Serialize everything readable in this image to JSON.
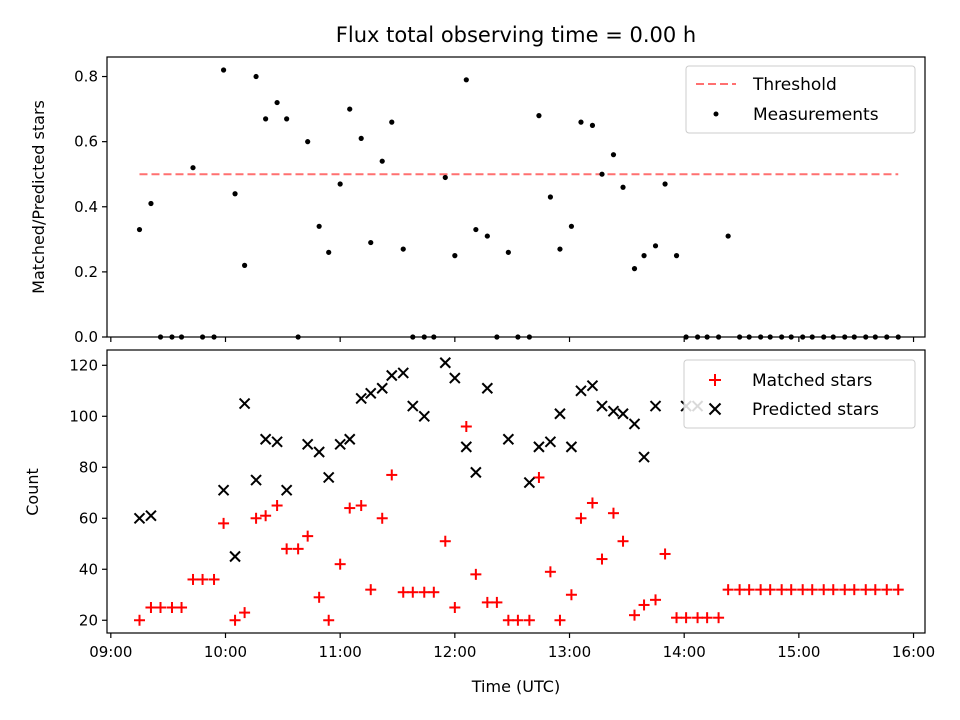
{
  "chart_data": [
    {
      "type": "scatter",
      "title": "Flux total observing time = 0.00 h",
      "xlabel": "",
      "ylabel": "Matched/Predicted stars",
      "xlim": [
        "08:58",
        "16:06"
      ],
      "ylim": [
        0,
        0.86
      ],
      "xticks": [
        "09:00",
        "10:00",
        "11:00",
        "12:00",
        "13:00",
        "14:00",
        "15:00",
        "16:00"
      ],
      "yticks": [
        "0.0",
        "0.2",
        "0.4",
        "0.6",
        "0.8"
      ],
      "legend_position": "top-right",
      "threshold": {
        "name": "Threshold",
        "value": 0.5,
        "x_start": "09:15",
        "x_end": "15:52",
        "color": "#ff7070",
        "style": "dashed"
      },
      "series": [
        {
          "name": "Measurements",
          "color": "#000000",
          "marker": "dot",
          "x": [
            "09:15",
            "09:21",
            "09:26",
            "09:32",
            "09:37",
            "09:43",
            "09:48",
            "09:54",
            "09:59",
            "10:05",
            "10:10",
            "10:16",
            "10:21",
            "10:27",
            "10:32",
            "10:38",
            "10:43",
            "10:49",
            "10:54",
            "11:00",
            "11:05",
            "11:11",
            "11:16",
            "11:22",
            "11:27",
            "11:33",
            "11:38",
            "11:44",
            "11:49",
            "11:55",
            "12:00",
            "12:06",
            "12:11",
            "12:17",
            "12:22",
            "12:28",
            "12:33",
            "12:39",
            "12:44",
            "12:50",
            "12:55",
            "13:01",
            "13:06",
            "13:12",
            "13:17",
            "13:23",
            "13:28",
            "13:34",
            "13:39",
            "13:45",
            "13:50",
            "13:56",
            "14:01",
            "14:07",
            "14:12",
            "14:18",
            "14:23",
            "14:29",
            "14:34",
            "14:40",
            "14:45",
            "14:51",
            "14:56",
            "15:02",
            "15:07",
            "15:13",
            "15:18",
            "15:24",
            "15:29",
            "15:35",
            "15:40",
            "15:46",
            "15:52"
          ],
          "y": [
            0.33,
            0.41,
            0.0,
            0.0,
            0.0,
            0.52,
            0.0,
            0.0,
            0.82,
            0.44,
            0.22,
            0.8,
            0.67,
            0.72,
            0.67,
            0.0,
            0.6,
            0.34,
            0.26,
            0.47,
            0.7,
            0.61,
            0.29,
            0.54,
            0.66,
            0.27,
            0.0,
            0.0,
            0.0,
            0.49,
            0.25,
            0.79,
            0.33,
            0.31,
            0.0,
            0.26,
            0.0,
            0.0,
            0.68,
            0.43,
            0.27,
            0.34,
            0.66,
            0.65,
            0.5,
            0.56,
            0.46,
            0.21,
            0.25,
            0.28,
            0.47,
            0.25,
            0.0,
            0.0,
            0.0,
            0.0,
            0.31,
            0.0,
            0.0,
            0.0,
            0.0,
            0.0,
            0.0,
            0.0,
            0.0,
            0.0,
            0.0,
            0.0,
            0.0,
            0.0,
            0.0,
            0.0,
            0.0
          ]
        }
      ]
    },
    {
      "type": "scatter",
      "title": "",
      "xlabel": "Time (UTC)",
      "ylabel": "Count",
      "xlim": [
        "08:58",
        "16:06"
      ],
      "ylim": [
        15,
        126
      ],
      "xticks": [
        "09:00",
        "10:00",
        "11:00",
        "12:00",
        "13:00",
        "14:00",
        "15:00",
        "16:00"
      ],
      "yticks": [
        "20",
        "40",
        "60",
        "80",
        "100",
        "120"
      ],
      "legend_position": "top-right",
      "series": [
        {
          "name": "Matched stars",
          "color": "#ff0000",
          "marker": "plus",
          "x": [
            "09:15",
            "09:21",
            "09:26",
            "09:32",
            "09:37",
            "09:43",
            "09:48",
            "09:54",
            "09:59",
            "10:05",
            "10:10",
            "10:16",
            "10:21",
            "10:27",
            "10:32",
            "10:38",
            "10:43",
            "10:49",
            "10:54",
            "11:00",
            "11:05",
            "11:11",
            "11:16",
            "11:22",
            "11:27",
            "11:33",
            "11:38",
            "11:44",
            "11:49",
            "11:55",
            "12:00",
            "12:06",
            "12:11",
            "12:17",
            "12:22",
            "12:28",
            "12:33",
            "12:39",
            "12:44",
            "12:50",
            "12:55",
            "13:01",
            "13:06",
            "13:12",
            "13:17",
            "13:23",
            "13:28",
            "13:34",
            "13:39",
            "13:45",
            "13:50",
            "13:56",
            "14:01",
            "14:07",
            "14:12",
            "14:18",
            "14:23",
            "14:29",
            "14:34",
            "14:40",
            "14:45",
            "14:51",
            "14:56",
            "15:02",
            "15:07",
            "15:13",
            "15:18",
            "15:24",
            "15:29",
            "15:35",
            "15:40",
            "15:46",
            "15:52"
          ],
          "y": [
            20,
            25,
            25,
            25,
            25,
            36,
            36,
            36,
            58,
            20,
            23,
            60,
            61,
            65,
            48,
            48,
            53,
            29,
            20,
            42,
            64,
            65,
            32,
            60,
            77,
            31,
            31,
            31,
            31,
            51,
            25,
            96,
            38,
            27,
            27,
            20,
            20,
            20,
            76,
            39,
            20,
            30,
            60,
            66,
            44,
            62,
            51,
            22,
            26,
            28,
            46,
            21,
            21,
            21,
            21,
            21,
            32,
            32,
            32,
            32,
            32,
            32,
            32,
            32,
            32,
            32,
            32,
            32,
            32,
            32,
            32,
            32,
            32
          ]
        },
        {
          "name": "Predicted stars",
          "color": "#000000",
          "marker": "x",
          "x": [
            "09:15",
            "09:21",
            "10:05",
            "09:59",
            "10:10",
            "10:16",
            "10:21",
            "10:27",
            "10:32",
            "10:43",
            "10:49",
            "10:54",
            "11:00",
            "11:05",
            "11:11",
            "11:16",
            "11:22",
            "11:27",
            "11:33",
            "11:38",
            "11:44",
            "11:55",
            "12:00",
            "12:06",
            "12:11",
            "12:17",
            "12:28",
            "12:39",
            "12:44",
            "12:50",
            "12:55",
            "13:01",
            "13:06",
            "13:12",
            "13:17",
            "13:23",
            "13:28",
            "13:34",
            "13:39",
            "13:45",
            "14:01",
            "14:07"
          ],
          "y": [
            60,
            61,
            45,
            71,
            105,
            75,
            91,
            90,
            71,
            89,
            86,
            76,
            89,
            91,
            107,
            109,
            111,
            116,
            117,
            104,
            100,
            121,
            115,
            88,
            78,
            111,
            91,
            74,
            88,
            90,
            101,
            88,
            110,
            112,
            104,
            102,
            101,
            97,
            84,
            104,
            104,
            104
          ]
        }
      ]
    }
  ]
}
